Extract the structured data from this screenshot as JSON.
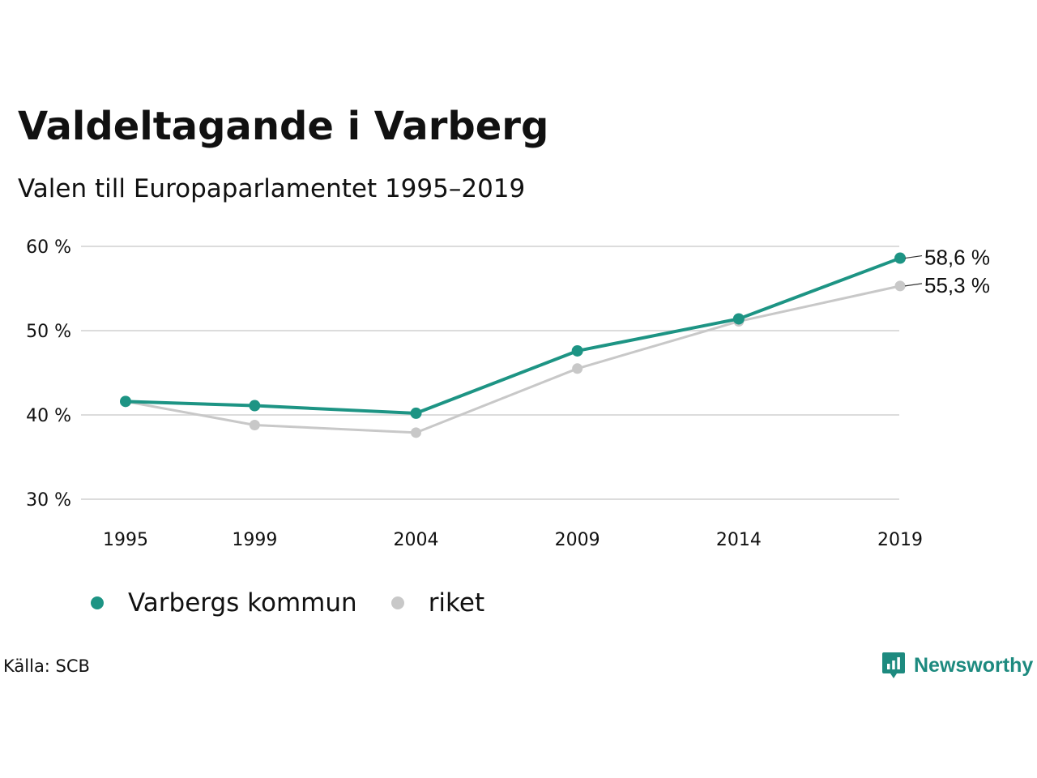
{
  "header": {
    "title": "Valdeltagande i Varberg",
    "subtitle": "Valen till Europaparlamentet 1995–2019"
  },
  "footer": {
    "source": "Källa: SCB",
    "brand": "Newsworthy"
  },
  "colors": {
    "varberg": "#1d9484",
    "riket": "#c8c8c8",
    "grid": "#dcdcdc",
    "brand": "#1d8a7f"
  },
  "icons": {
    "brand_logo": "newsworthy-logo-icon"
  },
  "chart_data": {
    "type": "line",
    "title": "Valdeltagande i Varberg",
    "subtitle": "Valen till Europaparlamentet 1995–2019",
    "x": [
      "1995",
      "1999",
      "2004",
      "2009",
      "2014",
      "2019"
    ],
    "x_numeric": [
      1995,
      1999,
      2004,
      2009,
      2014,
      2019
    ],
    "y_ticks": [
      "30 %",
      "40 %",
      "50 %",
      "60 %"
    ],
    "y_tick_values": [
      30,
      40,
      50,
      60
    ],
    "ylim": [
      30,
      60
    ],
    "grid": true,
    "legend_position": "bottom-left",
    "series": [
      {
        "name": "Varbergs kommun",
        "values": [
          41.6,
          41.1,
          40.2,
          47.6,
          51.4,
          58.6
        ],
        "end_label": "58,6 %",
        "color": "#1d9484"
      },
      {
        "name": "riket",
        "values": [
          41.6,
          38.8,
          37.9,
          45.5,
          51.1,
          55.3
        ],
        "end_label": "55,3 %",
        "color": "#c8c8c8"
      }
    ]
  }
}
